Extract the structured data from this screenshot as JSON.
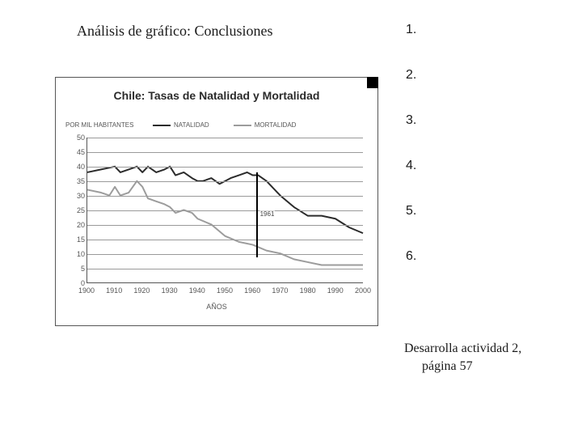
{
  "title": "Análisis de gráfico: Conclusiones",
  "list": {
    "n1": "1.",
    "n2": "2.",
    "n3": "3.",
    "n4": "4.",
    "n5": "5.",
    "n6": "6."
  },
  "activity": {
    "line1": "Desarrolla actividad 2,",
    "line2": "página 57"
  },
  "chart": {
    "type": "line",
    "title": "Chile: Tasas de Natalidad y Mortalidad",
    "yaxis_title": "POR MIL HABITANTES",
    "xaxis_title": "AÑOS",
    "xlim": [
      1900,
      2000
    ],
    "ylim": [
      0,
      50
    ],
    "ytick_step": 5,
    "yticks": [
      0,
      5,
      10,
      15,
      20,
      25,
      30,
      35,
      40,
      45,
      50
    ],
    "xticks": [
      1900,
      1910,
      1920,
      1930,
      1940,
      1950,
      1960,
      1970,
      1980,
      1990,
      2000
    ],
    "background_color": "#ffffff",
    "grid_color": "#9a9a9a",
    "border_color": "#555555",
    "label_fontsize": 9,
    "title_fontsize": 14,
    "corner_square_color": "#000000",
    "marker": {
      "year": 1961,
      "label": "1961",
      "y_from": 38,
      "y_to": 9,
      "color": "#000000"
    },
    "legend": [
      {
        "label": "NATALIDAD",
        "color": "#2b2b2b",
        "width": 2
      },
      {
        "label": "MORTALIDAD",
        "color": "#9c9c9c",
        "width": 2
      }
    ],
    "series": [
      {
        "name": "natalidad",
        "color": "#2b2b2b",
        "line_width": 2,
        "x": [
          1900,
          1905,
          1910,
          1912,
          1915,
          1918,
          1920,
          1922,
          1925,
          1928,
          1930,
          1932,
          1935,
          1938,
          1940,
          1942,
          1945,
          1948,
          1950,
          1952,
          1955,
          1958,
          1960,
          1962,
          1965,
          1968,
          1970,
          1975,
          1980,
          1985,
          1990,
          1995,
          2000
        ],
        "y": [
          38,
          39,
          40,
          38,
          39,
          40,
          38,
          40,
          38,
          39,
          40,
          37,
          38,
          36,
          35,
          35,
          36,
          34,
          35,
          36,
          37,
          38,
          37,
          37,
          35,
          32,
          30,
          26,
          23,
          23,
          22,
          19,
          17
        ]
      },
      {
        "name": "mortalidad",
        "color": "#9c9c9c",
        "line_width": 2,
        "x": [
          1900,
          1905,
          1908,
          1910,
          1912,
          1915,
          1918,
          1920,
          1922,
          1925,
          1928,
          1930,
          1932,
          1935,
          1938,
          1940,
          1945,
          1950,
          1955,
          1960,
          1965,
          1970,
          1975,
          1980,
          1985,
          1990,
          1995,
          2000
        ],
        "y": [
          32,
          31,
          30,
          33,
          30,
          31,
          35,
          33,
          29,
          28,
          27,
          26,
          24,
          25,
          24,
          22,
          20,
          16,
          14,
          13,
          11,
          10,
          8,
          7,
          6,
          6,
          6,
          6
        ]
      }
    ]
  }
}
